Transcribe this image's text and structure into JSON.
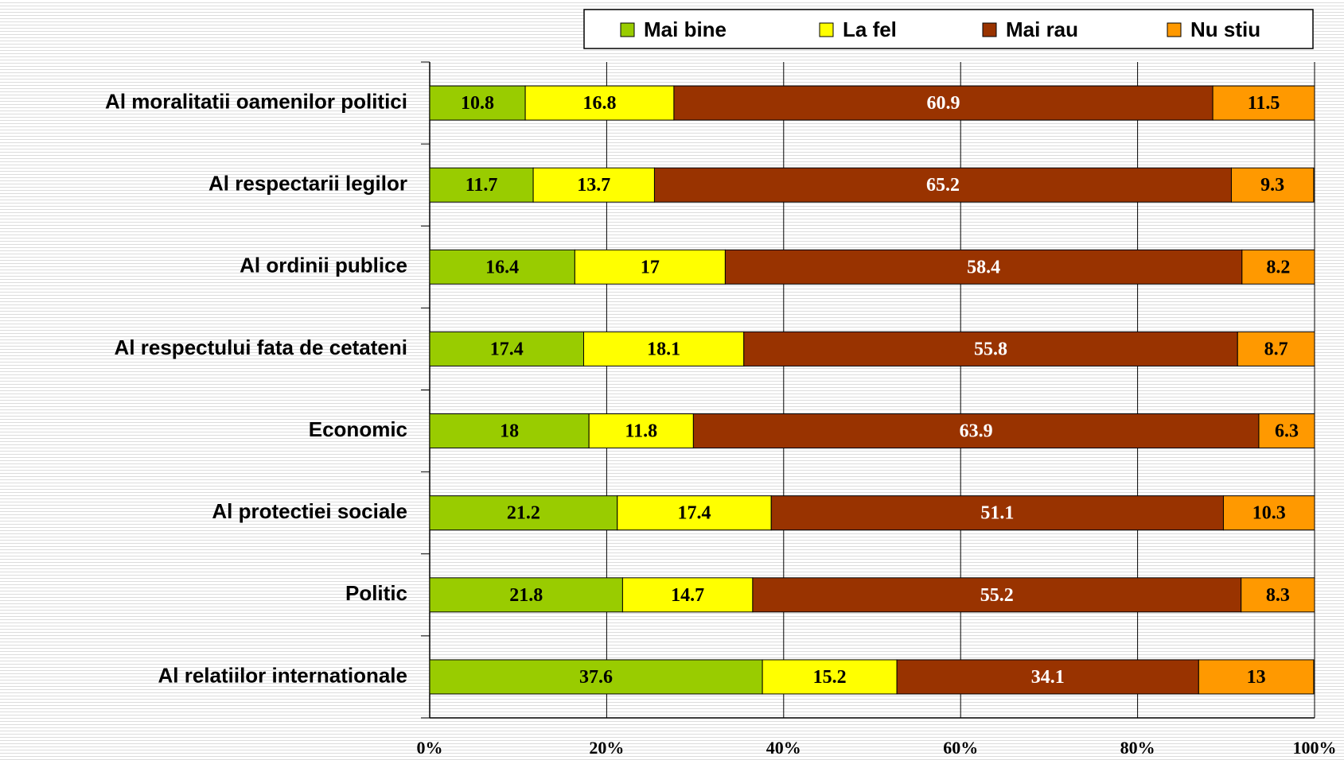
{
  "chart_data": {
    "type": "stacked-bar-horizontal",
    "categories": [
      "Al moralitatii oamenilor politici",
      "Al respectarii legilor",
      "Al ordinii publice",
      "Al respectului fata de cetateni",
      "Economic",
      "Al protectiei sociale",
      "Politic",
      "Al relatiilor internationale"
    ],
    "series": [
      {
        "name": "Mai bine",
        "color": "#99cc00",
        "label_color": "#000000",
        "values": [
          10.8,
          11.7,
          16.4,
          17.4,
          18,
          21.2,
          21.8,
          37.6
        ]
      },
      {
        "name": "La fel",
        "color": "#ffff00",
        "label_color": "#000000",
        "values": [
          16.8,
          13.7,
          17,
          18.1,
          11.8,
          17.4,
          14.7,
          15.2
        ]
      },
      {
        "name": "Mai rau",
        "color": "#993300",
        "label_color": "#ffffff",
        "values": [
          60.9,
          65.2,
          58.4,
          55.8,
          63.9,
          51.1,
          55.2,
          34.1
        ]
      },
      {
        "name": "Nu stiu",
        "color": "#ff9900",
        "label_color": "#000000",
        "values": [
          11.5,
          9.3,
          8.2,
          8.7,
          6.3,
          10.3,
          8.3,
          13
        ]
      }
    ],
    "xlim": [
      0,
      100
    ],
    "xticks": [
      {
        "value": 0,
        "label": "0%"
      },
      {
        "value": 20,
        "label": "20%"
      },
      {
        "value": 40,
        "label": "40%"
      },
      {
        "value": 60,
        "label": "60%"
      },
      {
        "value": 80,
        "label": "80%"
      },
      {
        "value": 100,
        "label": "100%"
      }
    ],
    "grid": true,
    "legend": "top"
  }
}
